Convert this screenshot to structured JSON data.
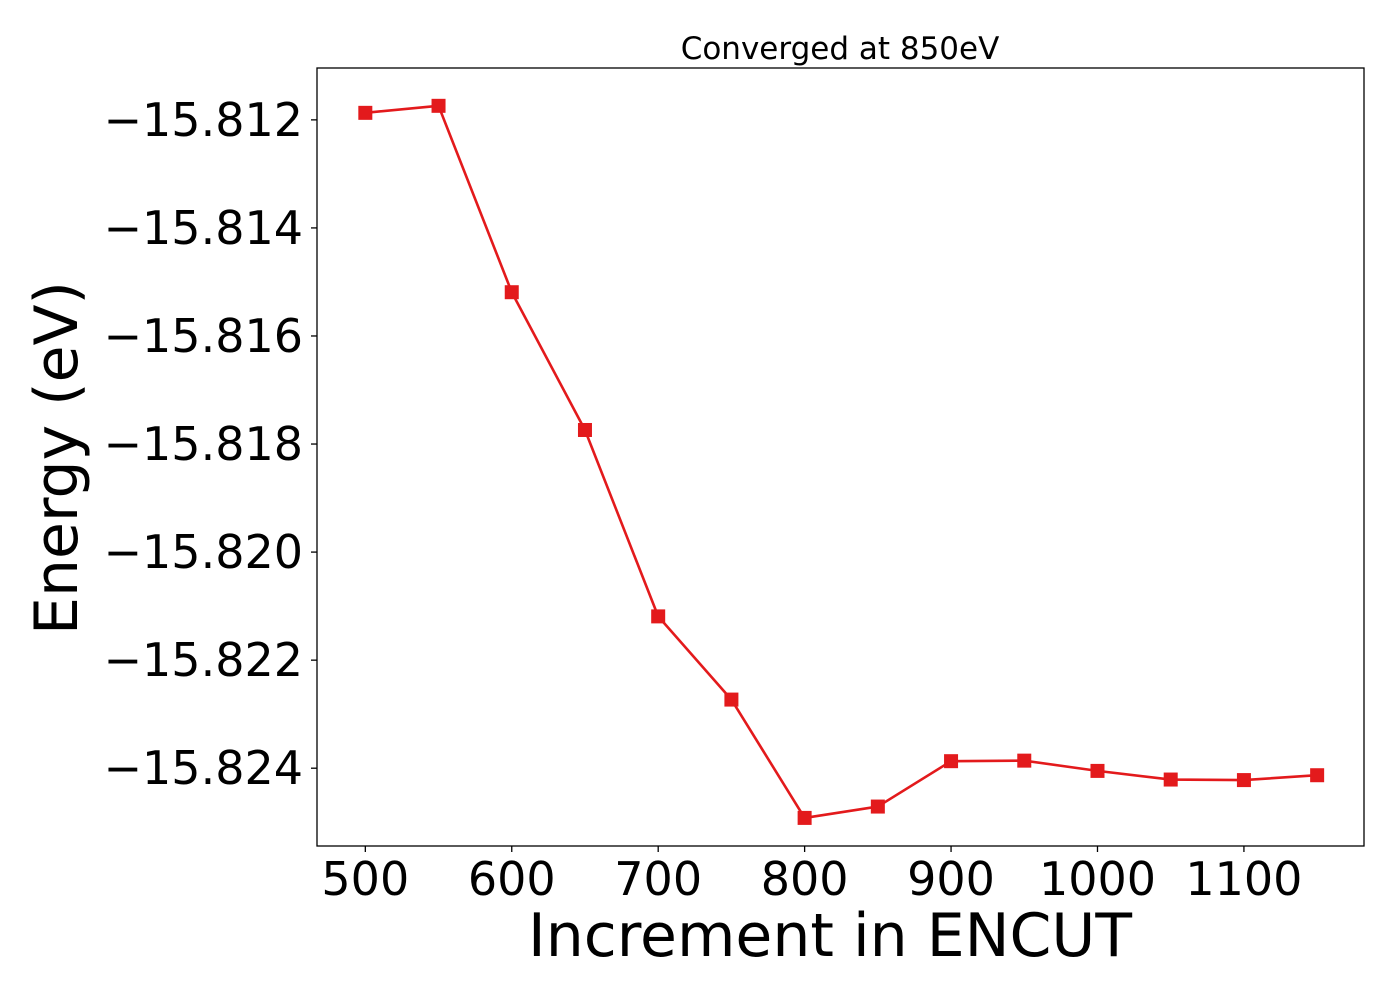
{
  "chart_data": {
    "type": "line",
    "title": "Converged at 850eV",
    "xlabel": "Increment in ENCUT",
    "ylabel": "Energy (eV)",
    "x_ticks": [
      500,
      600,
      700,
      800,
      900,
      1000,
      1100
    ],
    "x_tick_labels": [
      "500",
      "600",
      "700",
      "800",
      "900",
      "1000",
      "1100"
    ],
    "y_ticks": [
      -15.812,
      -15.814,
      -15.816,
      -15.818,
      -15.82,
      -15.822,
      -15.824
    ],
    "y_tick_labels": [
      "−15.812",
      "−15.814",
      "−15.816",
      "−15.818",
      "−15.820",
      "−15.822",
      "−15.824"
    ],
    "xlim": [
      467,
      1182
    ],
    "ylim": [
      -15.82544,
      -15.81104
    ],
    "grid": false,
    "legend": "none",
    "series": [
      {
        "color": "#e31a1c",
        "marker": "square",
        "x": [
          500,
          550,
          600,
          650,
          700,
          750,
          800,
          850,
          900,
          950,
          1000,
          1050,
          1100,
          1150
        ],
        "y": [
          -15.81187,
          -15.81174,
          -15.81519,
          -15.81774,
          -15.82119,
          -15.82273,
          -15.82492,
          -15.82471,
          -15.82387,
          -15.82386,
          -15.82405,
          -15.82421,
          -15.82422,
          -15.82413
        ]
      }
    ]
  }
}
